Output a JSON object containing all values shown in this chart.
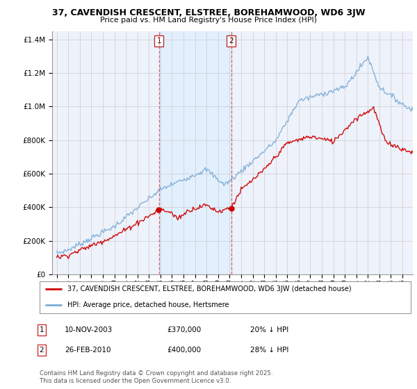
{
  "title": "37, CAVENDISH CRESCENT, ELSTREE, BOREHAMWOOD, WD6 3JW",
  "subtitle": "Price paid vs. HM Land Registry's House Price Index (HPI)",
  "sale1_date": "10-NOV-2003",
  "sale1_price": 370000,
  "sale1_hpi_pct": "20% ↓ HPI",
  "sale2_date": "26-FEB-2010",
  "sale2_price": 400000,
  "sale2_hpi_pct": "28% ↓ HPI",
  "legend_line1": "37, CAVENDISH CRESCENT, ELSTREE, BOREHAMWOOD, WD6 3JW (detached house)",
  "legend_line2": "HPI: Average price, detached house, Hertsmere",
  "footnote": "Contains HM Land Registry data © Crown copyright and database right 2025.\nThis data is licensed under the Open Government Licence v3.0.",
  "red_color": "#cc0000",
  "blue_color": "#7aacd6",
  "shade_color": "#ddeeff",
  "grid_color": "#cccccc",
  "background_color": "#ffffff",
  "plot_bg_color": "#eef2fb",
  "ylim": [
    0,
    1450000
  ],
  "yticks": [
    0,
    200000,
    400000,
    600000,
    800000,
    1000000,
    1200000,
    1400000
  ],
  "sale1_x": 2003.87,
  "sale2_x": 2010.15,
  "xmin": 1994.6,
  "xmax": 2025.9
}
